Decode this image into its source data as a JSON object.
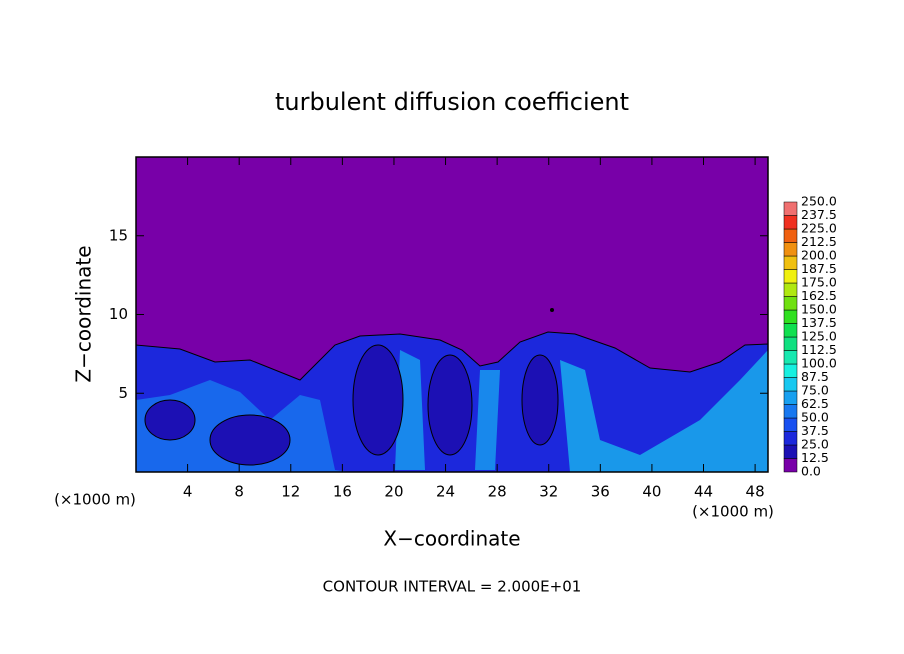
{
  "chart_data": {
    "type": "contour",
    "title": "turbulent diffusion coefficient",
    "x_label": "X−coordinate",
    "y_label": "Z−coordinate",
    "x_unit_label": "(×1000 m)",
    "footer": "CONTOUR INTERVAL = 2.000E+01",
    "xlim": [
      0,
      49
    ],
    "xticks": [
      4,
      8,
      12,
      16,
      20,
      24,
      28,
      32,
      36,
      40,
      44,
      48
    ],
    "ylim": [
      0,
      20
    ],
    "yticks": [
      5,
      10,
      15
    ],
    "colorbar": {
      "levels": [
        {
          "value": 0,
          "label": "0.0"
        },
        {
          "value": 12.5,
          "label": "12.5"
        },
        {
          "value": 25,
          "label": "25.0"
        },
        {
          "value": 37.5,
          "label": "37.5"
        },
        {
          "value": 50,
          "label": "50.0"
        },
        {
          "value": 62.5,
          "label": "62.5"
        },
        {
          "value": 75,
          "label": "75.0"
        },
        {
          "value": 87.5,
          "label": "87.5"
        },
        {
          "value": 100,
          "label": "100.0"
        },
        {
          "value": 112.5,
          "label": "112.5"
        },
        {
          "value": 125,
          "label": "125.0"
        },
        {
          "value": 137.5,
          "label": "137.5"
        },
        {
          "value": 150,
          "label": "150.0"
        },
        {
          "value": 162.5,
          "label": "162.5"
        },
        {
          "value": 175,
          "label": "175.0"
        },
        {
          "value": 187.5,
          "label": "187.5"
        },
        {
          "value": 200,
          "label": "200.0"
        },
        {
          "value": 212.5,
          "label": "212.5"
        },
        {
          "value": 225,
          "label": "225.0"
        },
        {
          "value": 237.5,
          "label": "237.5"
        },
        {
          "value": 250,
          "label": "250.0"
        }
      ],
      "colors": [
        "#7800a8",
        "#1c10b4",
        "#1c28dc",
        "#1850f0",
        "#1878f0",
        "#18a0f0",
        "#18c8f0",
        "#18f0e0",
        "#18e8b0",
        "#10e080",
        "#10e050",
        "#30e020",
        "#70e010",
        "#b0e810",
        "#f0f010",
        "#f0c010",
        "#f09010",
        "#f06010",
        "#f03020",
        "#f07070"
      ]
    }
  }
}
